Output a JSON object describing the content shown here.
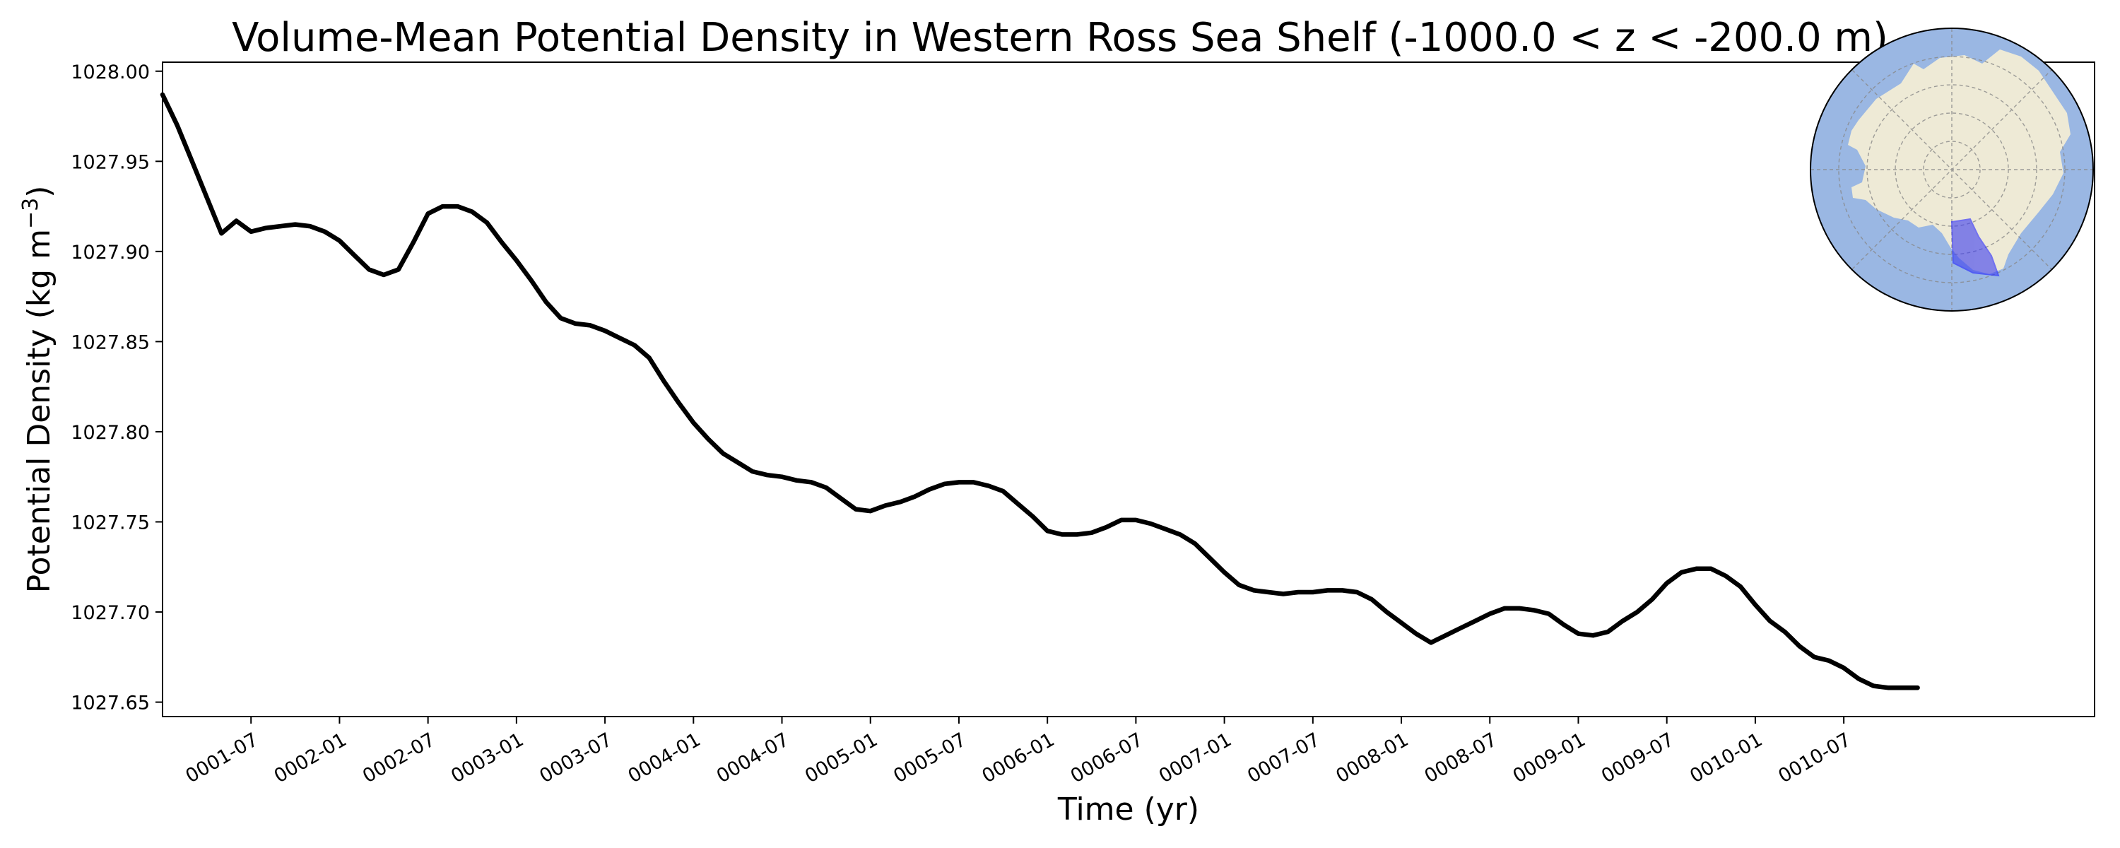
{
  "chart_data": {
    "type": "line",
    "title": "Volume-Mean Potential Density in Western Ross Sea Shelf (-1000.0 < z < -200.0 m)",
    "xlabel": "Time (yr)",
    "ylabel": "Potential Density (kg m",
    "ylabel_superscript": "−3",
    "ylabel_suffix": ")",
    "xlim": [
      0.0,
      10.917
    ],
    "ylim": [
      1027.642,
      1028.005
    ],
    "grid": false,
    "x_ticks": [
      {
        "value": 0.5,
        "label": "0001-07"
      },
      {
        "value": 1.0,
        "label": "0002-01"
      },
      {
        "value": 1.5,
        "label": "0002-07"
      },
      {
        "value": 2.0,
        "label": "0003-01"
      },
      {
        "value": 2.5,
        "label": "0003-07"
      },
      {
        "value": 3.0,
        "label": "0004-01"
      },
      {
        "value": 3.5,
        "label": "0004-07"
      },
      {
        "value": 4.0,
        "label": "0005-01"
      },
      {
        "value": 4.5,
        "label": "0005-07"
      },
      {
        "value": 5.0,
        "label": "0006-01"
      },
      {
        "value": 5.5,
        "label": "0006-07"
      },
      {
        "value": 6.0,
        "label": "0007-01"
      },
      {
        "value": 6.5,
        "label": "0007-07"
      },
      {
        "value": 7.0,
        "label": "0008-01"
      },
      {
        "value": 7.5,
        "label": "0008-07"
      },
      {
        "value": 8.0,
        "label": "0009-01"
      },
      {
        "value": 8.5,
        "label": "0009-07"
      },
      {
        "value": 9.0,
        "label": "0010-01"
      },
      {
        "value": 9.5,
        "label": "0010-07"
      }
    ],
    "y_ticks": [
      {
        "value": 1027.65,
        "label": "1027.65"
      },
      {
        "value": 1027.7,
        "label": "1027.70"
      },
      {
        "value": 1027.75,
        "label": "1027.75"
      },
      {
        "value": 1027.8,
        "label": "1027.80"
      },
      {
        "value": 1027.85,
        "label": "1027.85"
      },
      {
        "value": 1027.9,
        "label": "1027.90"
      },
      {
        "value": 1027.95,
        "label": "1027.95"
      },
      {
        "value": 1028.0,
        "label": "1028.00"
      }
    ],
    "series": [
      {
        "color": "#000000",
        "x": [
          0.0,
          0.083,
          0.167,
          0.25,
          0.333,
          0.417,
          0.5,
          0.583,
          0.667,
          0.75,
          0.833,
          0.917,
          1.0,
          1.083,
          1.167,
          1.25,
          1.333,
          1.417,
          1.5,
          1.583,
          1.667,
          1.75,
          1.833,
          1.917,
          2.0,
          2.083,
          2.167,
          2.25,
          2.333,
          2.417,
          2.5,
          2.583,
          2.667,
          2.75,
          2.833,
          2.917,
          3.0,
          3.083,
          3.167,
          3.25,
          3.333,
          3.417,
          3.5,
          3.583,
          3.667,
          3.75,
          3.833,
          3.917,
          4.0,
          4.083,
          4.167,
          4.25,
          4.333,
          4.417,
          4.5,
          4.583,
          4.667,
          4.75,
          4.833,
          4.917,
          5.0,
          5.083,
          5.167,
          5.25,
          5.333,
          5.417,
          5.5,
          5.583,
          5.667,
          5.75,
          5.833,
          5.917,
          6.0,
          6.083,
          6.167,
          6.25,
          6.333,
          6.417,
          6.5,
          6.583,
          6.667,
          6.75,
          6.833,
          6.917,
          7.0,
          7.083,
          7.167,
          7.25,
          7.333,
          7.417,
          7.5,
          7.583,
          7.667,
          7.75,
          7.833,
          7.917,
          8.0,
          8.083,
          8.167,
          8.25,
          8.333,
          8.417,
          8.5,
          8.583,
          8.667,
          8.75,
          8.833,
          8.917,
          9.0,
          9.083,
          9.167,
          9.25,
          9.333,
          9.417,
          9.5,
          9.583,
          9.667,
          9.75,
          9.833,
          9.917
        ],
        "y": [
          1027.987,
          1027.97,
          1027.95,
          1027.93,
          1027.91,
          1027.917,
          1027.911,
          1027.913,
          1027.914,
          1027.915,
          1027.914,
          1027.911,
          1027.906,
          1027.898,
          1027.89,
          1027.887,
          1027.89,
          1027.905,
          1027.921,
          1027.925,
          1027.925,
          1027.922,
          1027.916,
          1027.905,
          1027.895,
          1027.884,
          1027.872,
          1027.863,
          1027.86,
          1027.859,
          1027.856,
          1027.852,
          1027.848,
          1027.841,
          1027.828,
          1027.816,
          1027.805,
          1027.796,
          1027.788,
          1027.783,
          1027.778,
          1027.776,
          1027.775,
          1027.773,
          1027.772,
          1027.769,
          1027.763,
          1027.757,
          1027.756,
          1027.759,
          1027.761,
          1027.764,
          1027.768,
          1027.771,
          1027.772,
          1027.772,
          1027.77,
          1027.767,
          1027.76,
          1027.753,
          1027.745,
          1027.743,
          1027.743,
          1027.744,
          1027.747,
          1027.751,
          1027.751,
          1027.749,
          1027.746,
          1027.743,
          1027.738,
          1027.73,
          1027.722,
          1027.715,
          1027.712,
          1027.711,
          1027.71,
          1027.711,
          1027.711,
          1027.712,
          1027.712,
          1027.711,
          1027.707,
          1027.7,
          1027.694,
          1027.688,
          1027.683,
          1027.687,
          1027.691,
          1027.695,
          1027.699,
          1027.702,
          1027.702,
          1027.701,
          1027.699,
          1027.693,
          1027.688,
          1027.687,
          1027.689,
          1027.695,
          1027.7,
          1027.707,
          1027.716,
          1027.722,
          1027.724,
          1027.724,
          1027.72,
          1027.714,
          1027.704,
          1027.695,
          1027.689,
          1027.681,
          1027.675,
          1027.673,
          1027.669,
          1027.663,
          1027.659,
          1027.658,
          1027.658,
          1027.658
        ]
      }
    ]
  },
  "inset_map": {
    "ocean_color": "#9ab7e3",
    "land_color": "#eeead6",
    "region_color": "#3c3cf0"
  }
}
